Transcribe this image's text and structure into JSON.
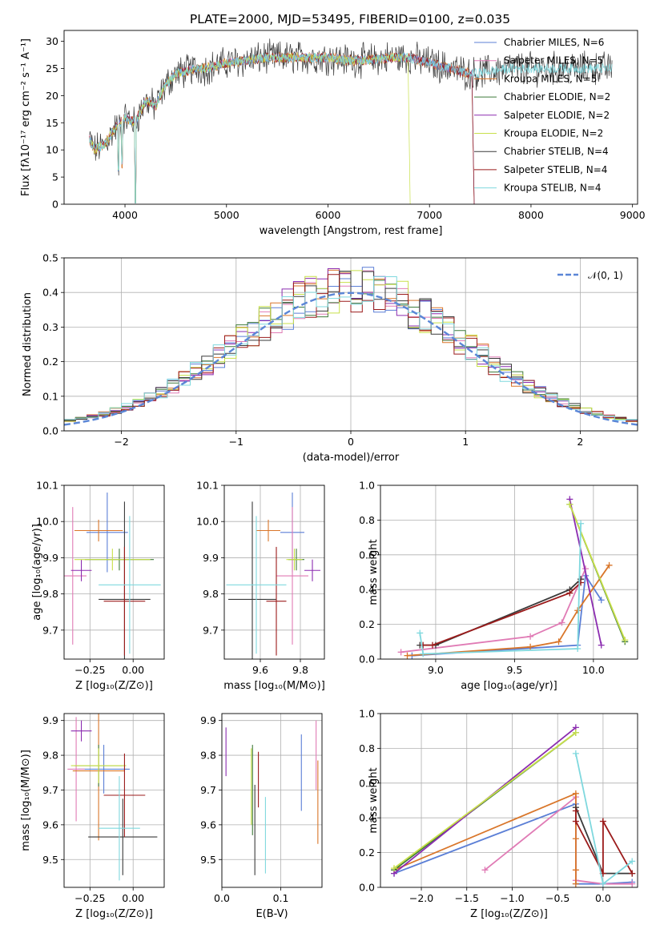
{
  "colors": {
    "chab_miles": "#5b7fd6",
    "salp_miles": "#e07bb5",
    "krou_miles": "#d9762a",
    "chab_elodie": "#3f7a3a",
    "salp_elodie": "#8b2cb0",
    "krou_elodie": "#c8e04a",
    "chab_stelib": "#3a3a3a",
    "salp_stelib": "#9b1b1b",
    "krou_stelib": "#7fd8de",
    "normal": "#5b86d6"
  },
  "chart_data": [
    {
      "id": "spectrum",
      "type": "line",
      "title": "PLATE=2000, MJD=53495, FIBERID=0100, z=0.035",
      "xlabel": "wavelength [Angstrom, rest frame]",
      "ylabel": "Flux [fλ10⁻¹⁷ erg cm⁻² s⁻¹ A⁻¹]",
      "xlim": [
        3400,
        9050
      ],
      "ylim": [
        0,
        32
      ],
      "xticks": [
        "4000",
        "5000",
        "6000",
        "7000",
        "8000",
        "9000"
      ],
      "yticks": [
        "0",
        "5",
        "10",
        "15",
        "20",
        "25",
        "30"
      ],
      "grid": false,
      "legend_position": "top-right",
      "legend": [
        {
          "key": "chab_miles",
          "label": "Chabrier MILES, N_SSP=6"
        },
        {
          "key": "salp_miles",
          "label": "Salpeter MILES, N_SSP=5"
        },
        {
          "key": "krou_miles",
          "label": "Kroupa MILES, N_SSP=5"
        },
        {
          "key": "chab_elodie",
          "label": "Chabrier ELODIE, N_SSP=2"
        },
        {
          "key": "salp_elodie",
          "label": "Salpeter ELODIE, N_SSP=2"
        },
        {
          "key": "krou_elodie",
          "label": "Kroupa ELODIE, N_SSP=2"
        },
        {
          "key": "chab_stelib",
          "label": "Chabrier STELIB, N_SSP=4"
        },
        {
          "key": "salp_stelib",
          "label": "Salpeter STELIB, N_SSP=4"
        },
        {
          "key": "krou_stelib",
          "label": "Kroupa STELIB, N_SSP=4"
        }
      ],
      "continuum": {
        "x": [
          3650,
          3700,
          3800,
          3900,
          4000,
          4100,
          4200,
          4300,
          4400,
          4500,
          4600,
          4700,
          4800,
          5000,
          5200,
          5400,
          5600,
          5800,
          6000,
          6200,
          6400,
          6600,
          6800,
          7000,
          7200,
          7400,
          7600,
          7800,
          8000,
          8200,
          8400,
          8600,
          8800
        ],
        "y": [
          12,
          10,
          11,
          14,
          16,
          15,
          19,
          18,
          22,
          24,
          24.5,
          25,
          25,
          26,
          26.5,
          27,
          27,
          27,
          27,
          26.5,
          26.5,
          27,
          27,
          26,
          25,
          24,
          24.5,
          25,
          25,
          25,
          25,
          25,
          25
        ]
      }
    },
    {
      "id": "residuals",
      "type": "line",
      "xlabel": "(data-model)/error",
      "ylabel": "Normed distribution",
      "xlim": [
        -2.5,
        2.5
      ],
      "ylim": [
        0,
        0.5
      ],
      "xticks": [
        "−2",
        "−1",
        "0",
        "1",
        "2"
      ],
      "xtick_values": [
        -2,
        -1,
        0,
        1,
        2
      ],
      "yticks": [
        "0.0",
        "0.1",
        "0.2",
        "0.3",
        "0.4",
        "0.5"
      ],
      "grid": true,
      "legend_position": "top-right",
      "legend": [
        {
          "key": "normal",
          "label": "𝒩(0, 1)"
        }
      ],
      "bins": {
        "start": -2.5,
        "width": 0.1,
        "count": 50
      }
    },
    {
      "id": "age_vs_Z",
      "type": "scatter",
      "xlabel": "Z [log₁₀(Z/Z⊙)]",
      "ylabel": "age  [log₁₀(age/yr)]",
      "xlim": [
        -0.4,
        0.18
      ],
      "ylim": [
        9.62,
        10.1
      ],
      "xticks": [
        "−0.25",
        "0.00"
      ],
      "xtick_values": [
        -0.25,
        0
      ],
      "yticks": [
        "9.7",
        "9.8",
        "9.9",
        "10.0",
        "10.1"
      ],
      "ytick_values": [
        9.7,
        9.8,
        9.9,
        10.0,
        10.1
      ],
      "points": [
        {
          "key": "chab_miles",
          "x": -0.15,
          "y": 9.97,
          "xerr": 0.12,
          "yerr": 0.11
        },
        {
          "key": "salp_miles",
          "x": -0.35,
          "y": 9.85,
          "xerr": 0.08,
          "yerr": 0.19
        },
        {
          "key": "krou_miles",
          "x": -0.2,
          "y": 9.975,
          "xerr": 0.14,
          "yerr": 0.03
        },
        {
          "key": "chab_elodie",
          "x": -0.08,
          "y": 9.895,
          "xerr": 0.2,
          "yerr": 0.03
        },
        {
          "key": "salp_elodie",
          "x": -0.3,
          "y": 9.865,
          "xerr": 0.06,
          "yerr": 0.03
        },
        {
          "key": "krou_elodie",
          "x": -0.12,
          "y": 9.895,
          "xerr": 0.22,
          "yerr": 0.03
        },
        {
          "key": "chab_stelib",
          "x": -0.05,
          "y": 9.785,
          "xerr": 0.15,
          "yerr": 0.27
        },
        {
          "key": "salp_stelib",
          "x": -0.05,
          "y": 9.78,
          "xerr": 0.12,
          "yerr": 0.15
        },
        {
          "key": "krou_stelib",
          "x": -0.02,
          "y": 9.825,
          "xerr": 0.18,
          "yerr": 0.19
        }
      ]
    },
    {
      "id": "age_vs_mass",
      "type": "scatter",
      "xlabel": "mass [log₁₀(M/M⊙)]",
      "ylabel": "",
      "xlim": [
        9.42,
        9.92
      ],
      "ylim": [
        9.62,
        10.1
      ],
      "xticks": [
        "9.6",
        "9.8"
      ],
      "xtick_values": [
        9.6,
        9.8
      ],
      "yticks": [
        "9.7",
        "9.8",
        "9.9",
        "10.0",
        "10.1"
      ],
      "ytick_values": [
        9.7,
        9.8,
        9.9,
        10.0,
        10.1
      ],
      "points": [
        {
          "key": "chab_miles",
          "x": 9.76,
          "y": 9.97,
          "xerr": 0.06,
          "yerr": 0.11
        },
        {
          "key": "salp_miles",
          "x": 9.76,
          "y": 9.85,
          "xerr": 0.08,
          "yerr": 0.19
        },
        {
          "key": "krou_miles",
          "x": 9.64,
          "y": 9.975,
          "xerr": 0.06,
          "yerr": 0.03
        },
        {
          "key": "chab_elodie",
          "x": 9.78,
          "y": 9.895,
          "xerr": 0.04,
          "yerr": 0.03
        },
        {
          "key": "salp_elodie",
          "x": 9.86,
          "y": 9.865,
          "xerr": 0.04,
          "yerr": 0.03
        },
        {
          "key": "krou_elodie",
          "x": 9.77,
          "y": 9.895,
          "xerr": 0.04,
          "yerr": 0.03
        },
        {
          "key": "chab_stelib",
          "x": 9.56,
          "y": 9.785,
          "xerr": 0.12,
          "yerr": 0.27
        },
        {
          "key": "salp_stelib",
          "x": 9.68,
          "y": 9.78,
          "xerr": 0.05,
          "yerr": 0.15
        },
        {
          "key": "krou_stelib",
          "x": 9.58,
          "y": 9.825,
          "xerr": 0.15,
          "yerr": 0.19
        }
      ]
    },
    {
      "id": "weight_vs_age",
      "type": "line",
      "xlabel": "age  [log₁₀(age/yr)]",
      "ylabel": "mass weight",
      "xlim": [
        8.65,
        10.28
      ],
      "ylim": [
        0,
        1.0
      ],
      "xticks": [
        "9.0",
        "9.5",
        "10.0"
      ],
      "xtick_values": [
        9.0,
        9.5,
        10.0
      ],
      "yticks": [
        "0.0",
        "0.2",
        "0.4",
        "0.6",
        "0.8",
        "1.0"
      ],
      "ytick_values": [
        0,
        0.2,
        0.4,
        0.6,
        0.8,
        1.0
      ],
      "grid": true,
      "series": [
        {
          "key": "chab_miles",
          "x": [
            8.85,
            9.9,
            9.95,
            10.05
          ],
          "y": [
            0.02,
            0.08,
            0.48,
            0.34
          ]
        },
        {
          "key": "salp_miles",
          "x": [
            8.78,
            9.6,
            9.8,
            9.95
          ],
          "y": [
            0.04,
            0.13,
            0.21,
            0.52
          ]
        },
        {
          "key": "krou_miles",
          "x": [
            8.82,
            9.6,
            9.78,
            9.9,
            10.1
          ],
          "y": [
            0.02,
            0.07,
            0.1,
            0.28,
            0.54
          ]
        },
        {
          "key": "chab_elodie",
          "x": [
            9.85,
            10.2
          ],
          "y": [
            0.89,
            0.1
          ]
        },
        {
          "key": "salp_elodie",
          "x": [
            9.85,
            10.05
          ],
          "y": [
            0.92,
            0.08
          ]
        },
        {
          "key": "krou_elodie",
          "x": [
            9.85,
            10.2
          ],
          "y": [
            0.89,
            0.11
          ]
        },
        {
          "key": "chab_stelib",
          "x": [
            8.9,
            9.0,
            9.85,
            9.92
          ],
          "y": [
            0.08,
            0.08,
            0.4,
            0.46
          ]
        },
        {
          "key": "salp_stelib",
          "x": [
            8.92,
            8.98,
            9.85,
            9.92
          ],
          "y": [
            0.08,
            0.08,
            0.38,
            0.44
          ]
        },
        {
          "key": "krou_stelib",
          "x": [
            8.9,
            8.92,
            9.9,
            9.92
          ],
          "y": [
            0.15,
            0.03,
            0.06,
            0.78
          ]
        }
      ]
    },
    {
      "id": "mass_vs_Z",
      "type": "scatter",
      "xlabel": "Z [log₁₀(Z/Z⊙)]",
      "ylabel": "mass [log₁₀(M/M⊙)]",
      "xlim": [
        -0.4,
        0.18
      ],
      "ylim": [
        9.42,
        9.92
      ],
      "xticks": [
        "−0.25",
        "0.00"
      ],
      "xtick_values": [
        -0.25,
        0
      ],
      "yticks": [
        "9.5",
        "9.6",
        "9.7",
        "9.8",
        "9.9"
      ],
      "ytick_values": [
        9.5,
        9.6,
        9.7,
        9.8,
        9.9
      ],
      "points": [
        {
          "key": "chab_miles",
          "x": -0.17,
          "y": 9.76,
          "xerr": 0.15,
          "yerr": 0.07
        },
        {
          "key": "salp_miles",
          "x": -0.33,
          "y": 9.76,
          "xerr": 0.05,
          "yerr": 0.15
        },
        {
          "key": "krou_miles",
          "x": -0.2,
          "y": 9.755,
          "xerr": 0.15,
          "yerr": 0.2
        },
        {
          "key": "chab_elodie",
          "x": -0.2,
          "y": 9.77,
          "xerr": 0.14,
          "yerr": 0.06
        },
        {
          "key": "salp_elodie",
          "x": -0.3,
          "y": 9.87,
          "xerr": 0.06,
          "yerr": 0.03
        },
        {
          "key": "krou_elodie",
          "x": -0.2,
          "y": 9.77,
          "xerr": 0.16,
          "yerr": 0.05
        },
        {
          "key": "chab_stelib",
          "x": -0.06,
          "y": 9.565,
          "xerr": 0.2,
          "yerr": 0.11
        },
        {
          "key": "salp_stelib",
          "x": -0.05,
          "y": 9.685,
          "xerr": 0.12,
          "yerr": 0.12
        },
        {
          "key": "krou_stelib",
          "x": -0.08,
          "y": 9.59,
          "xerr": 0.12,
          "yerr": 0.15
        }
      ]
    },
    {
      "id": "mass_vs_ebv",
      "type": "scatter",
      "xlabel": "E(B-V)",
      "ylabel": "",
      "xlim": [
        0.0,
        0.17
      ],
      "ylim": [
        9.42,
        9.92
      ],
      "xticks": [
        "0.0",
        "0.1"
      ],
      "xtick_values": [
        0.0,
        0.1
      ],
      "yticks": [
        "9.5",
        "9.6",
        "9.7",
        "9.8",
        "9.9"
      ],
      "ytick_values": [
        9.5,
        9.6,
        9.7,
        9.8,
        9.9
      ],
      "points": [
        {
          "key": "chab_miles",
          "x": 0.135,
          "y": 9.75,
          "xerr": 0,
          "yerr": 0.11
        },
        {
          "key": "salp_miles",
          "x": 0.16,
          "y": 9.8,
          "xerr": 0,
          "yerr": 0.1
        },
        {
          "key": "krou_miles",
          "x": 0.163,
          "y": 9.665,
          "xerr": 0,
          "yerr": 0.12
        },
        {
          "key": "chab_elodie",
          "x": 0.052,
          "y": 9.7,
          "xerr": 0,
          "yerr": 0.13
        },
        {
          "key": "salp_elodie",
          "x": 0.007,
          "y": 9.81,
          "xerr": 0,
          "yerr": 0.07
        },
        {
          "key": "krou_elodie",
          "x": 0.05,
          "y": 9.71,
          "xerr": 0,
          "yerr": 0.11
        },
        {
          "key": "chab_stelib",
          "x": 0.056,
          "y": 9.585,
          "xerr": 0,
          "yerr": 0.13
        },
        {
          "key": "salp_stelib",
          "x": 0.062,
          "y": 9.73,
          "xerr": 0,
          "yerr": 0.08
        },
        {
          "key": "krou_stelib",
          "x": 0.074,
          "y": 9.57,
          "xerr": 0,
          "yerr": 0.11
        }
      ]
    },
    {
      "id": "weight_vs_Z",
      "type": "line",
      "xlabel": "Z [log₁₀(Z/Z⊙)]",
      "ylabel": "mass weight",
      "xlim": [
        -2.45,
        0.38
      ],
      "ylim": [
        0,
        1.0
      ],
      "xticks": [
        "−2.0",
        "−1.5",
        "−1.0",
        "−0.5",
        "0.0"
      ],
      "xtick_values": [
        -2,
        -1.5,
        -1,
        -0.5,
        0
      ],
      "yticks": [
        "0.0",
        "0.2",
        "0.4",
        "0.6",
        "0.8",
        "1.0"
      ],
      "ytick_values": [
        0,
        0.2,
        0.4,
        0.6,
        0.8,
        1.0
      ],
      "grid": true,
      "series": [
        {
          "key": "chab_miles",
          "x": [
            -2.3,
            -0.3,
            -0.3,
            0.0,
            0.32
          ],
          "y": [
            0.08,
            0.48,
            0.02,
            0.02,
            0.03
          ]
        },
        {
          "key": "salp_miles",
          "x": [
            -1.3,
            -0.3,
            -0.3,
            0.0,
            0.32
          ],
          "y": [
            0.1,
            0.52,
            0.04,
            0.02,
            0.02
          ]
        },
        {
          "key": "krou_miles",
          "x": [
            -2.3,
            -0.3,
            -0.3,
            -0.3,
            -0.3
          ],
          "y": [
            0.1,
            0.54,
            0.28,
            0.1,
            0.02
          ]
        },
        {
          "key": "chab_elodie",
          "x": [
            -2.3,
            -0.3
          ],
          "y": [
            0.1,
            0.89
          ]
        },
        {
          "key": "salp_elodie",
          "x": [
            -2.3,
            -0.3
          ],
          "y": [
            0.08,
            0.92
          ]
        },
        {
          "key": "krou_elodie",
          "x": [
            -2.3,
            -0.3
          ],
          "y": [
            0.11,
            0.89
          ]
        },
        {
          "key": "chab_stelib",
          "x": [
            -0.3,
            0.0,
            0.32
          ],
          "y": [
            0.46,
            0.08,
            0.08
          ]
        },
        {
          "key": "salp_stelib",
          "x": [
            -0.3,
            -0.3,
            0.0,
            0.0,
            0.32
          ],
          "y": [
            0.44,
            0.38,
            0.08,
            0.38,
            0.08
          ]
        },
        {
          "key": "krou_stelib",
          "x": [
            -0.3,
            0.0,
            0.32
          ],
          "y": [
            0.77,
            0.02,
            0.15
          ]
        }
      ]
    }
  ]
}
